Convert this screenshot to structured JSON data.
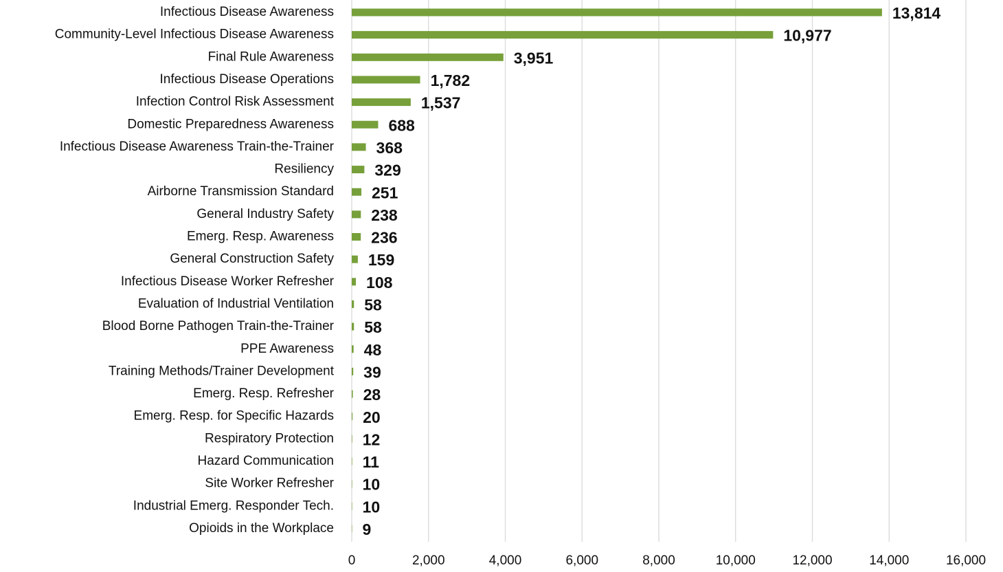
{
  "chart_data": {
    "type": "bar",
    "orientation": "horizontal",
    "categories": [
      "Infectious Disease Awareness",
      "Community-Level Infectious Disease Awareness",
      "Final Rule Awareness",
      "Infectious Disease Operations",
      "Infection Control Risk Assessment",
      "Domestic Preparedness Awareness",
      "Infectious Disease Awareness Train-the-Trainer",
      "Resiliency",
      "Airborne Transmission Standard",
      "General Industry Safety",
      "Emerg. Resp. Awareness",
      "General Construction Safety",
      "Infectious Disease Worker Refresher",
      "Evaluation of Industrial Ventilation",
      "Blood Borne Pathogen Train-the-Trainer",
      "PPE Awareness",
      "Training Methods/Trainer Development",
      "Emerg. Resp. Refresher",
      "Emerg. Resp. for Specific Hazards",
      "Respiratory Protection",
      "Hazard Communication",
      "Site Worker Refresher",
      "Industrial Emerg. Responder Tech.",
      "Opioids in the Workplace"
    ],
    "values": [
      13814,
      10977,
      3951,
      1782,
      1537,
      688,
      368,
      329,
      251,
      238,
      236,
      159,
      108,
      58,
      58,
      48,
      39,
      28,
      20,
      12,
      11,
      10,
      10,
      9
    ],
    "value_labels": [
      "13,814",
      "10,977",
      "3,951",
      "1,782",
      "1,537",
      "688",
      "368",
      "329",
      "251",
      "238",
      "236",
      "159",
      "108",
      "58",
      "58",
      "48",
      "39",
      "28",
      "20",
      "12",
      "11",
      "10",
      "10",
      "9"
    ],
    "color": "#77a03a",
    "xlim": [
      0,
      16000
    ],
    "xticks": [
      0,
      {
        "value": 2000,
        "label": "2,000"
      },
      {
        "value": 4000,
        "label": "4,000"
      },
      {
        "value": 6000,
        "label": "6,000"
      },
      {
        "value": 8000,
        "label": "8,000"
      },
      {
        "value": 10000,
        "label": "10,000"
      },
      {
        "value": 12000,
        "label": "12,000"
      },
      {
        "value": 14000,
        "label": "14,000"
      },
      {
        "value": 16000,
        "label": "16,000"
      }
    ],
    "grid": true
  }
}
